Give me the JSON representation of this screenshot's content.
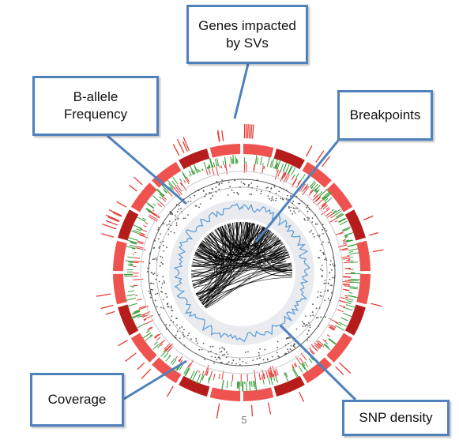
{
  "callouts": {
    "genes": "Genes impacted\nby SVs",
    "baf": "B-allele\nFrequency",
    "breakpoints": "Breakpoints",
    "coverage": "Coverage",
    "snp": "SNP density"
  },
  "page_number": "5",
  "colors": {
    "callout_border": "#4f81bd",
    "leader_line": "#4f81bd",
    "chromosome_band_light": "#ef5350",
    "chromosome_band_dark": "#b71c1c",
    "coverage_gain": "#3a9c3a",
    "coverage_loss": "#e53935",
    "baf_points": "#555555",
    "snp_density_line": "#5b9bd5",
    "breakpoint_links": "#000000",
    "gene_labels": "#e53935"
  },
  "icons": {
    "circos": "circos-genome-plot"
  }
}
